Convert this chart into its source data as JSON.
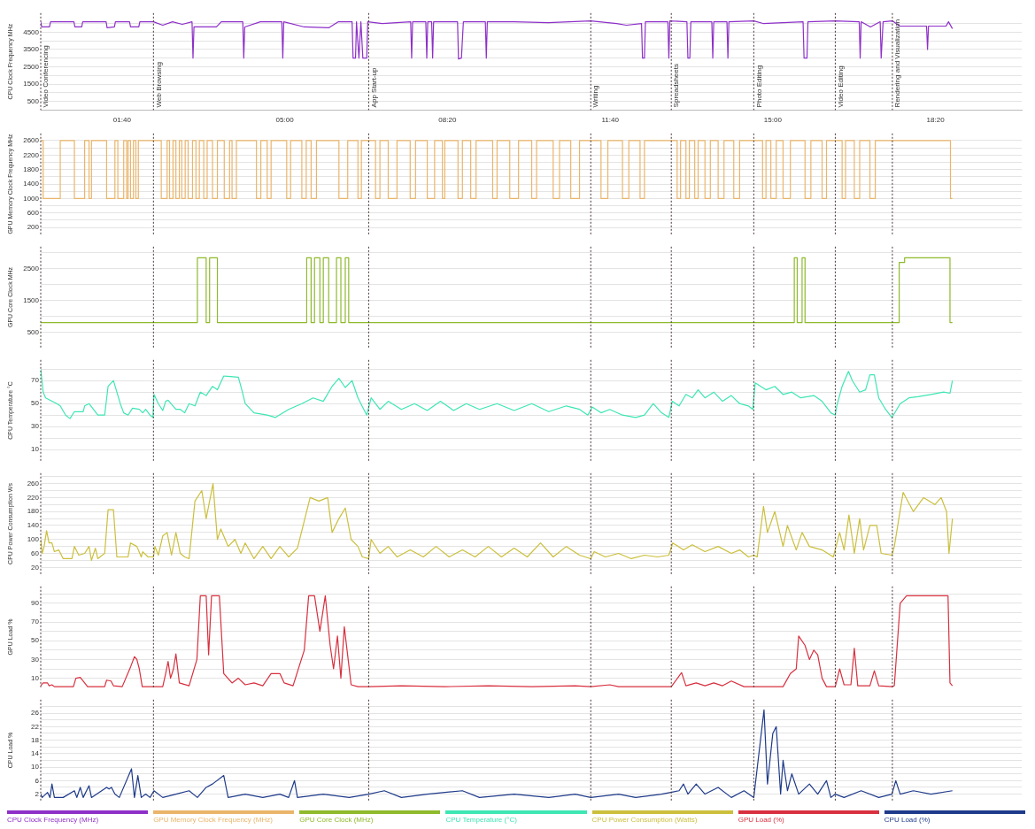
{
  "chart_data": [
    {
      "type": "line",
      "ylabel": "CPU Clock Frequency MHz",
      "xlim": [
        0,
        20.1
      ],
      "xticks": [
        {
          "value": 1.6667,
          "label": "01:40"
        },
        {
          "value": 5,
          "label": "05:00"
        },
        {
          "value": 8.3333,
          "label": "08:20"
        },
        {
          "value": 11.6667,
          "label": "11:40"
        },
        {
          "value": 15,
          "label": "15:00"
        },
        {
          "value": 18.3333,
          "label": "18:20"
        }
      ],
      "ylim": [
        0,
        5600
      ],
      "yticks": [
        500,
        {
          "value": 1000,
          "label": null
        },
        1500,
        {
          "value": 2000,
          "label": null
        },
        2500,
        {
          "value": 3000,
          "label": null
        },
        3500,
        {
          "value": 4000,
          "label": null
        },
        4500,
        {
          "value": 5000,
          "label": null
        }
      ],
      "grid": "y",
      "legend": "bottom",
      "ref_lines": [
        {
          "axis": "x",
          "value": 0,
          "label": "Video Conferencing"
        },
        {
          "axis": "x",
          "value": 2.31,
          "label": "Web Browsing"
        },
        {
          "axis": "x",
          "value": 6.72,
          "label": "App Start-up"
        },
        {
          "axis": "x",
          "value": 11.27,
          "label": "Writing"
        },
        {
          "axis": "x",
          "value": 12.92,
          "label": "Spreadsheets"
        },
        {
          "axis": "x",
          "value": 14.61,
          "label": "Photo Editing"
        },
        {
          "axis": "x",
          "value": 16.28,
          "label": "Video Editing"
        },
        {
          "axis": "x",
          "value": 17.45,
          "label": "Rendering and Visualization"
        }
      ],
      "series": [
        {
          "name": "CPU Clock Frequency (MHz)",
          "color": "#8e2fc9",
          "x": [
            0,
            0.02,
            0.18,
            0.2,
            0.68,
            0.7,
            0.84,
            0.86,
            1.34,
            1.36,
            1.51,
            1.53,
            1.82,
            1.84,
            2.01,
            2.03,
            2.31,
            2.5,
            2.7,
            2.9,
            3.1,
            3.12,
            3.14,
            3.6,
            3.7,
            4.14,
            4.16,
            4.18,
            4.5,
            4.94,
            4.96,
            4.98,
            5.4,
            5.9,
            6.1,
            6.38,
            6.4,
            6.45,
            6.47,
            6.52,
            6.56,
            6.6,
            6.68,
            6.7,
            7.0,
            7.58,
            7.6,
            7.62,
            7.89,
            7.91,
            7.93,
            8.01,
            8.03,
            8.05,
            8.54,
            8.56,
            8.62,
            8.66,
            9.11,
            9.13,
            9.15,
            9.7,
            10.4,
            11.27,
            11.8,
            12.0,
            12.31,
            12.33,
            12.37,
            12.39,
            12.85,
            12.87,
            12.89,
            13.24,
            13.26,
            13.3,
            13.32,
            13.75,
            13.77,
            13.79,
            14.06,
            14.08,
            14.1,
            14.61,
            14.8,
            15.62,
            15.64,
            15.7,
            15.72,
            16.28,
            16.77,
            16.79,
            16.81,
            17.0,
            17.2,
            17.22,
            17.26,
            17.45,
            17.6,
            18.15,
            18.17,
            18.19,
            18.55,
            18.6,
            18.68
          ],
          "values": [
            5100,
            4800,
            4800,
            5100,
            5100,
            4800,
            4800,
            5100,
            5100,
            4750,
            4800,
            5100,
            5100,
            4800,
            4800,
            5100,
            5100,
            4900,
            5100,
            4950,
            5100,
            3000,
            4800,
            4800,
            5100,
            5100,
            3000,
            4800,
            5100,
            5100,
            3000,
            5100,
            4800,
            4750,
            5100,
            5100,
            3000,
            3000,
            5100,
            3000,
            5100,
            3000,
            3000,
            5100,
            5000,
            5100,
            3000,
            5100,
            5100,
            3000,
            5100,
            5100,
            3000,
            5100,
            5100,
            2950,
            3000,
            5100,
            5100,
            3000,
            5100,
            5100,
            5050,
            5150,
            5000,
            4900,
            5000,
            3000,
            3000,
            5100,
            5100,
            3000,
            5150,
            5100,
            3000,
            3000,
            5100,
            5100,
            3000,
            5100,
            5100,
            3000,
            5100,
            5150,
            5000,
            5100,
            3000,
            3000,
            5100,
            5150,
            5100,
            3000,
            5100,
            4800,
            5100,
            3000,
            5100,
            5150,
            4850,
            4850,
            3500,
            4850,
            4850,
            5100,
            4700
          ]
        }
      ]
    },
    {
      "type": "step",
      "ylabel": "GPU Memory Clock Frequency MHz",
      "xlim": [
        0,
        20.1
      ],
      "tick_labels": "y",
      "ylim": [
        0,
        2800
      ],
      "yticks": [
        200,
        {
          "value": 400,
          "label": null
        },
        600,
        {
          "value": 800,
          "label": null
        },
        1000,
        {
          "value": 1200,
          "label": null
        },
        1400,
        {
          "value": 1600,
          "label": null
        },
        1800,
        {
          "value": 2000,
          "label": null
        },
        2200,
        {
          "value": 2400,
          "label": null
        },
        2600
      ],
      "grid": "y",
      "legend": "bottom",
      "ref_lines": [
        {
          "axis": "x",
          "value": 0
        },
        {
          "axis": "x",
          "value": 2.31
        },
        {
          "axis": "x",
          "value": 6.72
        },
        {
          "axis": "x",
          "value": 11.27
        },
        {
          "axis": "x",
          "value": 12.92
        },
        {
          "axis": "x",
          "value": 14.61
        },
        {
          "axis": "x",
          "value": 16.28
        },
        {
          "axis": "x",
          "value": 17.45
        }
      ],
      "series": [
        {
          "name": "GPU Memory Clock Frequency (MHz)",
          "color": "#eab56a",
          "x": [
            0,
            0.05,
            0.4,
            0.69,
            0.9,
            0.99,
            1.04,
            1.35,
            1.52,
            1.58,
            1.7,
            1.76,
            1.79,
            1.84,
            1.9,
            1.95,
            2.0,
            2.47,
            2.59,
            2.64,
            2.71,
            2.77,
            2.84,
            2.89,
            2.96,
            3.02,
            3.11,
            3.18,
            3.25,
            3.34,
            3.41,
            3.52,
            3.62,
            3.76,
            3.87,
            3.92,
            4.01,
            4.42,
            4.51,
            4.64,
            4.72,
            5.04,
            5.12,
            5.35,
            5.44,
            5.54,
            5.65,
            6.11,
            6.29,
            6.5,
            6.57,
            6.86,
            6.95,
            7.12,
            7.3,
            7.57,
            7.68,
            7.92,
            8.07,
            8.23,
            8.28,
            8.55,
            8.64,
            8.81,
            8.92,
            9.26,
            9.35,
            9.61,
            9.79,
            10.06,
            10.16,
            10.5,
            10.63,
            10.86,
            11.04,
            11.48,
            11.62,
            11.92,
            12.05,
            12.28,
            12.37,
            13.04,
            13.11,
            13.22,
            13.29,
            13.4,
            13.47,
            13.61,
            13.72,
            13.88,
            14.0,
            14.2,
            14.32,
            14.79,
            14.86,
            14.96,
            15.07,
            15.21,
            15.36,
            15.66,
            15.78,
            16.01,
            16.1,
            16.42,
            16.49,
            16.67,
            16.78,
            16.99,
            17.1,
            18.64,
            18.68
          ],
          "values": [
            2600,
            1000,
            2600,
            1000,
            2600,
            1000,
            2600,
            1000,
            2600,
            1000,
            2600,
            1000,
            2600,
            1000,
            2600,
            1000,
            2600,
            1000,
            2600,
            1000,
            2600,
            1000,
            2600,
            1000,
            2600,
            1000,
            2600,
            1000,
            2600,
            1000,
            2600,
            1000,
            2600,
            1000,
            2600,
            1000,
            2600,
            1000,
            2600,
            1000,
            2600,
            1000,
            2600,
            1000,
            2600,
            1000,
            2600,
            1000,
            2600,
            1000,
            2600,
            1000,
            2600,
            1000,
            2600,
            1000,
            2600,
            1000,
            2600,
            1000,
            2600,
            1000,
            2600,
            1000,
            2600,
            1000,
            2600,
            1000,
            2600,
            1000,
            2600,
            1000,
            2600,
            1000,
            2600,
            1000,
            2600,
            1000,
            2600,
            1000,
            2600,
            1000,
            2600,
            1000,
            2600,
            1000,
            2600,
            1000,
            2600,
            1000,
            2600,
            1000,
            2600,
            1000,
            2600,
            1000,
            2600,
            1000,
            2600,
            1000,
            2600,
            1000,
            2600,
            1000,
            2600,
            1000,
            2600,
            1000,
            2600,
            1000,
            1000
          ]
        }
      ]
    },
    {
      "type": "step",
      "ylabel": "GPU Core Clock MHz",
      "xlim": [
        0,
        20.1
      ],
      "tick_labels": "y",
      "ylim": [
        0,
        3200
      ],
      "yticks": [
        500,
        {
          "value": 1000,
          "label": null
        },
        1500,
        {
          "value": 2000,
          "label": null
        },
        2500,
        {
          "value": 3000,
          "label": null
        }
      ],
      "grid": "y",
      "legend": "bottom",
      "ref_lines": [
        {
          "axis": "x",
          "value": 0
        },
        {
          "axis": "x",
          "value": 2.31
        },
        {
          "axis": "x",
          "value": 6.72
        },
        {
          "axis": "x",
          "value": 11.27
        },
        {
          "axis": "x",
          "value": 12.92
        },
        {
          "axis": "x",
          "value": 14.61
        },
        {
          "axis": "x",
          "value": 16.28
        },
        {
          "axis": "x",
          "value": 17.45
        }
      ],
      "series": [
        {
          "name": "GPU Core Clock (MHz)",
          "color": "#8fba2b",
          "x": [
            0,
            3.21,
            3.39,
            3.46,
            3.62,
            5.45,
            5.54,
            5.61,
            5.72,
            5.79,
            5.9,
            6.06,
            6.15,
            6.24,
            6.31,
            15.44,
            15.5,
            15.6,
            15.66,
            17.59,
            17.7,
            18.59,
            18.63,
            18.68
          ],
          "values": [
            800,
            2850,
            800,
            2850,
            800,
            2850,
            800,
            2850,
            800,
            2850,
            800,
            2850,
            800,
            2850,
            800,
            2850,
            800,
            2850,
            800,
            2700,
            2850,
            2850,
            800,
            800
          ]
        }
      ]
    },
    {
      "type": "line",
      "ylabel": "CPU Temperature °C",
      "xlim": [
        0,
        20.1
      ],
      "tick_labels": "y",
      "ylim": [
        0,
        88
      ],
      "yticks": [
        10,
        {
          "value": 20,
          "label": null
        },
        30,
        {
          "value": 40,
          "label": null
        },
        50,
        {
          "value": 60,
          "label": null
        },
        70,
        {
          "value": 80,
          "label": null
        }
      ],
      "grid": "y",
      "legend": "bottom",
      "ref_lines": [
        {
          "axis": "x",
          "value": 0
        },
        {
          "axis": "x",
          "value": 2.31
        },
        {
          "axis": "x",
          "value": 6.72
        },
        {
          "axis": "x",
          "value": 11.27
        },
        {
          "axis": "x",
          "value": 12.92
        },
        {
          "axis": "x",
          "value": 14.61
        },
        {
          "axis": "x",
          "value": 16.28
        },
        {
          "axis": "x",
          "value": 17.45
        }
      ],
      "series": [
        {
          "name": "CPU Temperature (°C)",
          "color": "#3ee6b4",
          "x": [
            0,
            0.05,
            0.1,
            0.33,
            0.4,
            0.51,
            0.6,
            0.69,
            0.87,
            0.9,
            0.99,
            1.08,
            1.17,
            1.31,
            1.38,
            1.49,
            1.56,
            1.63,
            1.7,
            1.79,
            1.88,
            2.02,
            2.09,
            2.15,
            2.24,
            2.3,
            2.32,
            2.41,
            2.5,
            2.56,
            2.61,
            2.77,
            2.86,
            2.95,
            3.04,
            3.16,
            3.27,
            3.39,
            3.52,
            3.62,
            3.75,
            4.05,
            4.12,
            4.19,
            4.37,
            4.64,
            4.81,
            5.08,
            5.35,
            5.58,
            5.79,
            5.97,
            6.11,
            6.24,
            6.38,
            6.5,
            6.68,
            6.77,
            6.95,
            7.12,
            7.39,
            7.66,
            7.92,
            8.19,
            8.46,
            8.72,
            8.99,
            9.35,
            9.7,
            10.06,
            10.41,
            10.77,
            11.04,
            11.21,
            11.3,
            11.48,
            11.66,
            11.92,
            12.19,
            12.37,
            12.55,
            12.72,
            12.87,
            12.94,
            13.08,
            13.22,
            13.35,
            13.47,
            13.61,
            13.79,
            13.97,
            14.15,
            14.32,
            14.5,
            14.59,
            14.64,
            14.86,
            15.04,
            15.21,
            15.39,
            15.57,
            15.84,
            16.01,
            16.19,
            16.28,
            16.31,
            16.42,
            16.55,
            16.63,
            16.78,
            16.9,
            16.99,
            17.08,
            17.17,
            17.31,
            17.44,
            17.47,
            17.61,
            17.79,
            17.97,
            18.24,
            18.5,
            18.63,
            18.68
          ],
          "values": [
            80,
            60,
            55,
            50,
            48,
            40,
            37,
            43,
            43,
            48,
            50,
            45,
            40,
            40,
            65,
            70,
            60,
            50,
            42,
            40,
            46,
            45,
            42,
            45,
            40,
            38,
            58,
            50,
            44,
            52,
            53,
            45,
            45,
            42,
            50,
            48,
            60,
            57,
            65,
            62,
            74,
            73,
            62,
            50,
            42,
            40,
            38,
            45,
            50,
            55,
            52,
            65,
            72,
            64,
            70,
            55,
            40,
            55,
            45,
            52,
            45,
            50,
            44,
            52,
            44,
            50,
            45,
            50,
            44,
            50,
            43,
            48,
            45,
            40,
            47,
            42,
            45,
            40,
            38,
            40,
            50,
            42,
            38,
            52,
            48,
            58,
            55,
            62,
            55,
            60,
            52,
            57,
            50,
            48,
            45,
            68,
            62,
            65,
            58,
            60,
            55,
            57,
            52,
            42,
            40,
            48,
            65,
            78,
            70,
            60,
            62,
            75,
            75,
            55,
            45,
            38,
            40,
            50,
            55,
            56,
            58,
            60,
            59,
            70
          ]
        }
      ]
    },
    {
      "type": "line",
      "ylabel": "CPU Power Consumption Ws",
      "xlim": [
        0,
        20.1
      ],
      "tick_labels": "y",
      "ylim": [
        0,
        290
      ],
      "yticks": [
        20,
        {
          "value": 40,
          "label": null
        },
        60,
        {
          "value": 80,
          "label": null
        },
        100,
        {
          "value": 120,
          "label": null
        },
        140,
        {
          "value": 160,
          "label": null
        },
        180,
        {
          "value": 200,
          "label": null
        },
        220,
        {
          "value": 240,
          "label": null
        },
        260,
        {
          "value": 280,
          "label": null
        }
      ],
      "grid": "y",
      "legend": "bottom",
      "ref_lines": [
        {
          "axis": "x",
          "value": 0
        },
        {
          "axis": "x",
          "value": 2.31
        },
        {
          "axis": "x",
          "value": 6.72
        },
        {
          "axis": "x",
          "value": 11.27
        },
        {
          "axis": "x",
          "value": 12.92
        },
        {
          "axis": "x",
          "value": 14.61
        },
        {
          "axis": "x",
          "value": 16.28
        },
        {
          "axis": "x",
          "value": 17.45
        }
      ],
      "series": [
        {
          "name": "CPU Power Consumption (Watts)",
          "color": "#cbbf3c",
          "x": [
            0,
            0.03,
            0.07,
            0.12,
            0.17,
            0.23,
            0.28,
            0.37,
            0.46,
            0.64,
            0.69,
            0.78,
            0.9,
            0.99,
            1.04,
            1.12,
            1.17,
            1.26,
            1.31,
            1.38,
            1.49,
            1.56,
            1.79,
            1.84,
            1.97,
            2.06,
            2.09,
            2.2,
            2.31,
            2.34,
            2.41,
            2.5,
            2.59,
            2.68,
            2.77,
            2.86,
            2.95,
            3.04,
            3.16,
            3.3,
            3.39,
            3.53,
            3.62,
            3.69,
            3.84,
            3.98,
            4.1,
            4.19,
            4.37,
            4.55,
            4.72,
            4.9,
            5.08,
            5.26,
            5.52,
            5.7,
            5.88,
            5.97,
            6.11,
            6.24,
            6.36,
            6.5,
            6.59,
            6.72,
            6.77,
            6.95,
            7.12,
            7.3,
            7.57,
            7.84,
            8.1,
            8.37,
            8.64,
            8.9,
            9.17,
            9.44,
            9.7,
            9.97,
            10.24,
            10.5,
            10.77,
            11.04,
            11.27,
            11.34,
            11.57,
            11.84,
            12.1,
            12.37,
            12.64,
            12.87,
            12.95,
            13.17,
            13.35,
            13.61,
            13.88,
            14.15,
            14.32,
            14.5,
            14.61,
            14.68,
            14.81,
            14.89,
            15.04,
            15.21,
            15.3,
            15.48,
            15.6,
            15.75,
            16.01,
            16.24,
            16.37,
            16.46,
            16.56,
            16.67,
            16.78,
            16.86,
            16.99,
            17.13,
            17.22,
            17.44,
            17.49,
            17.67,
            17.88,
            18.09,
            18.32,
            18.45,
            18.56,
            18.61,
            18.68
          ],
          "values": [
            100,
            60,
            80,
            125,
            90,
            90,
            65,
            70,
            45,
            45,
            80,
            55,
            60,
            80,
            40,
            75,
            45,
            55,
            60,
            185,
            185,
            50,
            50,
            90,
            80,
            50,
            65,
            50,
            50,
            80,
            55,
            110,
            120,
            55,
            120,
            60,
            50,
            45,
            210,
            240,
            160,
            260,
            100,
            130,
            80,
            100,
            60,
            90,
            45,
            80,
            45,
            80,
            50,
            75,
            220,
            210,
            220,
            120,
            160,
            190,
            100,
            80,
            50,
            45,
            100,
            60,
            80,
            50,
            70,
            50,
            80,
            50,
            70,
            50,
            80,
            50,
            75,
            50,
            90,
            50,
            80,
            55,
            45,
            65,
            50,
            60,
            45,
            55,
            50,
            55,
            90,
            70,
            85,
            65,
            80,
            60,
            70,
            50,
            55,
            50,
            195,
            120,
            180,
            80,
            140,
            70,
            120,
            80,
            70,
            50,
            120,
            70,
            170,
            60,
            160,
            70,
            140,
            140,
            60,
            55,
            80,
            235,
            180,
            220,
            200,
            220,
            180,
            60,
            160
          ]
        }
      ]
    },
    {
      "type": "line",
      "ylabel": "GPU Load %",
      "xlim": [
        0,
        20.1
      ],
      "tick_labels": "y",
      "ylim": [
        0,
        108
      ],
      "yticks": [
        10,
        {
          "value": 20,
          "label": null
        },
        30,
        {
          "value": 40,
          "label": null
        },
        50,
        {
          "value": 60,
          "label": null
        },
        70,
        {
          "value": 80,
          "label": null
        },
        90,
        {
          "value": 100,
          "label": null
        }
      ],
      "grid": "y",
      "legend": "bottom",
      "ref_lines": [
        {
          "axis": "x",
          "value": 0
        },
        {
          "axis": "x",
          "value": 2.31
        },
        {
          "axis": "x",
          "value": 6.72
        },
        {
          "axis": "x",
          "value": 11.27
        },
        {
          "axis": "x",
          "value": 12.92
        },
        {
          "axis": "x",
          "value": 14.61
        },
        {
          "axis": "x",
          "value": 16.28
        },
        {
          "axis": "x",
          "value": 17.45
        }
      ],
      "series": [
        {
          "name": "GPU Load (%)",
          "color": "#d8303f",
          "x": [
            0,
            0.05,
            0.14,
            0.17,
            0.23,
            0.28,
            0.67,
            0.72,
            0.81,
            0.9,
            0.96,
            1.31,
            1.35,
            1.44,
            1.49,
            1.67,
            1.84,
            1.92,
            1.97,
            2.02,
            2.08,
            2.31,
            2.5,
            2.56,
            2.61,
            2.66,
            2.72,
            2.77,
            2.84,
            3.04,
            3.2,
            3.27,
            3.39,
            3.44,
            3.5,
            3.66,
            3.75,
            3.92,
            4.05,
            4.19,
            4.37,
            4.55,
            4.72,
            4.9,
            4.99,
            5.17,
            5.4,
            5.49,
            5.61,
            5.72,
            5.83,
            5.93,
            6.0,
            6.08,
            6.15,
            6.22,
            6.36,
            6.5,
            6.72,
            7.39,
            8.28,
            9.17,
            10.06,
            10.95,
            11.27,
            11.66,
            11.84,
            12.92,
            13.13,
            13.22,
            13.43,
            13.61,
            13.79,
            13.97,
            14.15,
            14.41,
            14.61,
            15.21,
            15.36,
            15.48,
            15.53,
            15.66,
            15.75,
            15.84,
            15.92,
            16.01,
            16.1,
            16.28,
            16.37,
            16.46,
            16.6,
            16.67,
            16.74,
            16.99,
            17.08,
            17.17,
            17.45,
            17.49,
            17.61,
            17.74,
            18.59,
            18.63,
            18.68
          ],
          "values": [
            2,
            5,
            5,
            2,
            3,
            1,
            1,
            10,
            11,
            5,
            1,
            1,
            8,
            7,
            2,
            1,
            22,
            33,
            30,
            20,
            1,
            1,
            1,
            15,
            28,
            10,
            20,
            36,
            5,
            2,
            30,
            98,
            98,
            35,
            98,
            98,
            15,
            5,
            10,
            3,
            5,
            2,
            15,
            15,
            5,
            2,
            40,
            98,
            98,
            60,
            98,
            45,
            20,
            55,
            10,
            65,
            3,
            1,
            1,
            2,
            1,
            2,
            1,
            2,
            1,
            3,
            1,
            1,
            16,
            2,
            5,
            2,
            5,
            2,
            7,
            1,
            1,
            1,
            15,
            20,
            55,
            45,
            30,
            40,
            35,
            10,
            1,
            1,
            20,
            3,
            3,
            42,
            2,
            2,
            18,
            2,
            1,
            2,
            90,
            98,
            98,
            5,
            2
          ]
        }
      ]
    },
    {
      "type": "line",
      "ylabel": "CPU Load %",
      "xlim": [
        0,
        20.1
      ],
      "tick_labels": "y",
      "ylim": [
        0,
        30
      ],
      "yticks": [
        2,
        {
          "value": 4,
          "label": null
        },
        6,
        {
          "value": 8,
          "label": null
        },
        10,
        {
          "value": 12,
          "label": null
        },
        14,
        {
          "value": 16,
          "label": null
        },
        18,
        {
          "value": 20,
          "label": null
        },
        22,
        {
          "value": 24,
          "label": null
        },
        26,
        {
          "value": 28,
          "label": null
        }
      ],
      "grid": "y",
      "legend": "bottom",
      "ref_lines": [
        {
          "axis": "x",
          "value": 0
        },
        {
          "axis": "x",
          "value": 2.31
        },
        {
          "axis": "x",
          "value": 6.72
        },
        {
          "axis": "x",
          "value": 11.27
        },
        {
          "axis": "x",
          "value": 12.92
        },
        {
          "axis": "x",
          "value": 14.61
        },
        {
          "axis": "x",
          "value": 16.28
        },
        {
          "axis": "x",
          "value": 17.45
        }
      ],
      "series": [
        {
          "name": "CPU Load (%)",
          "color": "#1e3a8a",
          "x": [
            0,
            0.03,
            0.14,
            0.19,
            0.23,
            0.28,
            0.46,
            0.69,
            0.74,
            0.81,
            0.87,
            0.99,
            1.04,
            1.35,
            1.4,
            1.45,
            1.52,
            1.61,
            1.86,
            1.92,
            1.99,
            2.06,
            2.15,
            2.24,
            2.32,
            2.5,
            2.77,
            3.04,
            3.21,
            3.39,
            3.52,
            3.75,
            3.84,
            4.19,
            4.55,
            4.9,
            5.08,
            5.2,
            5.26,
            5.79,
            6.32,
            6.72,
            7.04,
            7.39,
            7.92,
            8.64,
            8.99,
            9.7,
            10.41,
            10.95,
            11.27,
            11.84,
            12.19,
            12.72,
            13.08,
            13.17,
            13.26,
            13.43,
            13.61,
            13.88,
            14.15,
            14.41,
            14.61,
            14.82,
            14.89,
            15.0,
            15.07,
            15.16,
            15.21,
            15.3,
            15.39,
            15.53,
            15.75,
            15.92,
            16.1,
            16.19,
            16.28,
            16.46,
            16.81,
            17.17,
            17.44,
            17.52,
            17.61,
            17.88,
            18.24,
            18.68
          ],
          "values": [
            2,
            1,
            2.5,
            1,
            5,
            1,
            1,
            3,
            1,
            4,
            1,
            4.5,
            1,
            4,
            3.5,
            4,
            2,
            1,
            9.5,
            1,
            7.5,
            1,
            2,
            1,
            3,
            1,
            2,
            3,
            1,
            4,
            5,
            7.5,
            1,
            2,
            1,
            2,
            1,
            6,
            1,
            2,
            1,
            2,
            3,
            1,
            2,
            3,
            1,
            2,
            1,
            2,
            1,
            2,
            1,
            2,
            3,
            5,
            2,
            5,
            2,
            4,
            1,
            3,
            1,
            27,
            5,
            20,
            22,
            2,
            12,
            3,
            8,
            2,
            5,
            2,
            6,
            1,
            2,
            1,
            3,
            1,
            2,
            6,
            2,
            3,
            2,
            3
          ]
        }
      ]
    }
  ]
}
